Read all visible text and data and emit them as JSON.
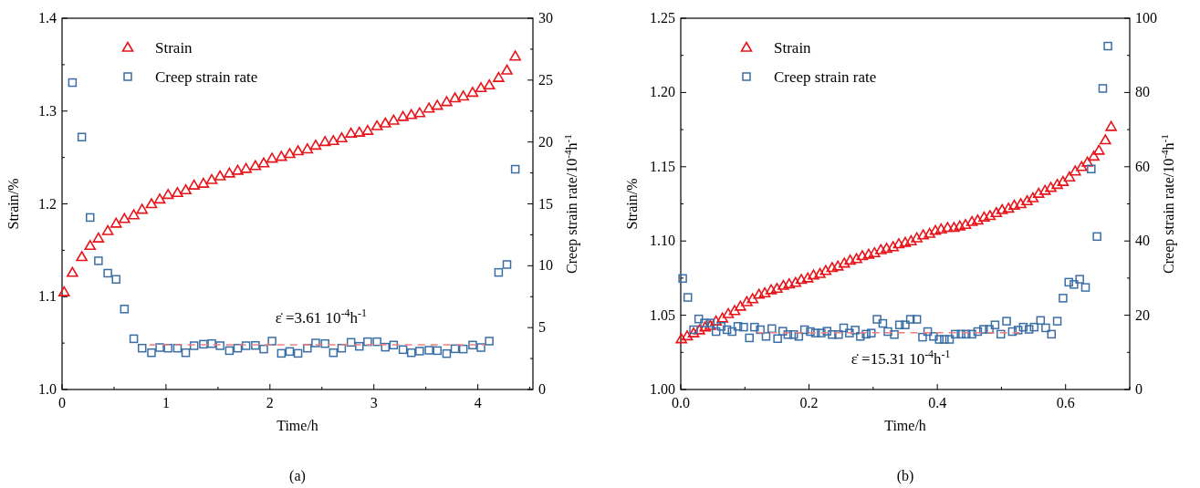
{
  "chart_data": [
    {
      "type": "scatter",
      "title": "(a)",
      "xlabel": "Time/h",
      "ylabel": "Strain/%",
      "y2label": "Creep strain rate/10$^{-4}$h$^{-1}$",
      "legend": "top left",
      "xlim": [
        0,
        4.53
      ],
      "xticks": [
        0,
        {
          "value": 0.5,
          "label": null
        },
        1,
        {
          "value": 1.5,
          "label": null
        },
        2,
        {
          "value": 2.5,
          "label": null
        },
        3,
        {
          "value": 3.5,
          "label": null
        },
        4,
        {
          "value": 4.5,
          "label": null
        }
      ],
      "ylim": [
        1.0,
        1.4
      ],
      "yticks": [
        {
          "value": 1.0,
          "label": "1.0"
        },
        {
          "value": 1.05,
          "label": null
        },
        1.1,
        {
          "value": 1.15,
          "label": null
        },
        1.2,
        {
          "value": 1.25,
          "label": null
        },
        1.3,
        {
          "value": 1.35,
          "label": null
        },
        1.4
      ],
      "y2lim": [
        0,
        30
      ],
      "y2ticks": [
        0,
        {
          "value": 2.5,
          "label": null
        },
        5,
        {
          "value": 7.5,
          "label": null
        },
        10,
        {
          "value": 12.5,
          "label": null
        },
        15,
        {
          "value": 17.5,
          "label": null
        },
        20,
        {
          "value": 22.5,
          "label": null
        },
        25,
        {
          "value": 27.5,
          "label": null
        },
        30
      ],
      "annotations": [
        "ε̇ =3.61 10$^{-4}$h$^{-1}$"
      ],
      "series": [
        {
          "name": "Strain",
          "color": "#e8141a",
          "marker": "triangle",
          "x": [
            0.02,
            0.1,
            0.19,
            0.27,
            0.35,
            0.44,
            0.52,
            0.6,
            0.69,
            0.77,
            0.86,
            0.94,
            1.02,
            1.11,
            1.19,
            1.27,
            1.36,
            1.44,
            1.52,
            1.61,
            1.69,
            1.77,
            1.86,
            1.94,
            2.02,
            2.11,
            2.19,
            2.27,
            2.36,
            2.44,
            2.53,
            2.61,
            2.69,
            2.78,
            2.86,
            2.94,
            3.03,
            3.11,
            3.19,
            3.28,
            3.36,
            3.44,
            3.53,
            3.61,
            3.7,
            3.78,
            3.86,
            3.95,
            4.03,
            4.11,
            4.2,
            4.28,
            4.36
          ],
          "values": [
            1.105,
            1.126,
            1.143,
            1.155,
            1.163,
            1.171,
            1.179,
            1.184,
            1.188,
            1.194,
            1.2,
            1.205,
            1.21,
            1.212,
            1.215,
            1.22,
            1.222,
            1.226,
            1.23,
            1.233,
            1.236,
            1.238,
            1.241,
            1.244,
            1.249,
            1.251,
            1.254,
            1.257,
            1.259,
            1.263,
            1.267,
            1.268,
            1.271,
            1.276,
            1.277,
            1.279,
            1.284,
            1.287,
            1.29,
            1.294,
            1.296,
            1.298,
            1.303,
            1.306,
            1.31,
            1.314,
            1.316,
            1.32,
            1.325,
            1.328,
            1.336,
            1.344,
            1.359
          ]
        },
        {
          "name": "Creep strain rate",
          "color": "#3a6ea5",
          "marker": "square",
          "axis": "y2",
          "x": [
            0.1,
            0.19,
            0.27,
            0.35,
            0.44,
            0.52,
            0.6,
            0.69,
            0.77,
            0.86,
            0.94,
            1.02,
            1.11,
            1.19,
            1.27,
            1.36,
            1.44,
            1.52,
            1.61,
            1.69,
            1.77,
            1.86,
            1.94,
            2.02,
            2.11,
            2.19,
            2.27,
            2.36,
            2.44,
            2.53,
            2.61,
            2.69,
            2.78,
            2.86,
            2.94,
            3.03,
            3.11,
            3.19,
            3.28,
            3.36,
            3.44,
            3.53,
            3.61,
            3.7,
            3.78,
            3.86,
            3.95,
            4.03,
            4.11,
            4.2,
            4.28,
            4.36
          ],
          "values": [
            24.8,
            20.4,
            13.9,
            10.4,
            9.4,
            8.9,
            6.5,
            4.1,
            3.34,
            2.97,
            3.39,
            3.34,
            3.34,
            2.97,
            3.54,
            3.66,
            3.71,
            3.54,
            3.14,
            3.34,
            3.54,
            3.56,
            3.27,
            3.91,
            2.92,
            3.07,
            2.92,
            3.34,
            3.76,
            3.71,
            2.97,
            3.34,
            3.81,
            3.49,
            3.86,
            3.86,
            3.42,
            3.59,
            3.22,
            2.97,
            3.1,
            3.17,
            3.14,
            2.9,
            3.29,
            3.27,
            3.59,
            3.39,
            3.91,
            9.46,
            10.1,
            17.8
          ]
        },
        {
          "type": "line",
          "color": "#f08080",
          "line_style": "dashed",
          "axis": "y2",
          "x": [
            0.84,
            4.07
          ],
          "values": [
            3.61,
            3.61
          ]
        }
      ]
    },
    {
      "type": "scatter",
      "title": "(b)",
      "xlabel": "Time/h",
      "ylabel": "Strain/%",
      "y2label": "Creep strain rate/10$^{-4}$h$^{-1}$",
      "legend": "top left",
      "xlim": [
        0,
        0.7
      ],
      "xticks": [
        {
          "value": 0,
          "label": "0.0"
        },
        {
          "value": 0.1,
          "label": null
        },
        0.2,
        {
          "value": 0.3,
          "label": null
        },
        0.4,
        {
          "value": 0.5,
          "label": null
        },
        0.6,
        {
          "value": 0.7,
          "label": null
        }
      ],
      "ylim": [
        1.0,
        1.25
      ],
      "yticks": [
        {
          "value": 1.0,
          "label": "1.00"
        },
        {
          "value": 1.025,
          "label": null
        },
        {
          "value": 1.05,
          "label": "1.05"
        },
        {
          "value": 1.075,
          "label": null
        },
        {
          "value": 1.1,
          "label": "1.10"
        },
        {
          "value": 1.125,
          "label": null
        },
        {
          "value": 1.15,
          "label": "1.15"
        },
        {
          "value": 1.175,
          "label": null
        },
        {
          "value": 1.2,
          "label": "1.20"
        },
        {
          "value": 1.225,
          "label": null
        },
        {
          "value": 1.25,
          "label": "1.25"
        }
      ],
      "y2lim": [
        0,
        100
      ],
      "y2ticks": [
        0,
        {
          "value": 10,
          "label": null
        },
        20,
        {
          "value": 30,
          "label": null
        },
        40,
        {
          "value": 50,
          "label": null
        },
        60,
        {
          "value": 70,
          "label": null
        },
        80,
        {
          "value": 90,
          "label": null
        },
        100
      ],
      "annotations": [
        "ε̇ =15.31 10$^{-4}$h$^{-1}$"
      ],
      "series": [
        {
          "name": "Strain",
          "color": "#e8141a",
          "marker": "triangle",
          "x": [
            0.001,
            0.01,
            0.02,
            0.029,
            0.038,
            0.046,
            0.055,
            0.065,
            0.074,
            0.084,
            0.093,
            0.103,
            0.112,
            0.122,
            0.131,
            0.141,
            0.15,
            0.16,
            0.169,
            0.179,
            0.188,
            0.198,
            0.207,
            0.217,
            0.226,
            0.236,
            0.245,
            0.255,
            0.264,
            0.274,
            0.283,
            0.293,
            0.302,
            0.312,
            0.321,
            0.331,
            0.34,
            0.35,
            0.359,
            0.368,
            0.378,
            0.388,
            0.397,
            0.406,
            0.416,
            0.426,
            0.435,
            0.444,
            0.454,
            0.463,
            0.473,
            0.482,
            0.492,
            0.501,
            0.511,
            0.52,
            0.53,
            0.54,
            0.549,
            0.558,
            0.568,
            0.577,
            0.587,
            0.596,
            0.606,
            0.615,
            0.625,
            0.634,
            0.644,
            0.652,
            0.662,
            0.671
          ],
          "values": [
            1.034,
            1.036,
            1.038,
            1.04,
            1.042,
            1.043,
            1.046,
            1.048,
            1.051,
            1.053,
            1.056,
            1.059,
            1.061,
            1.064,
            1.065,
            1.067,
            1.068,
            1.07,
            1.071,
            1.072,
            1.074,
            1.075,
            1.077,
            1.078,
            1.08,
            1.082,
            1.083,
            1.085,
            1.087,
            1.088,
            1.09,
            1.091,
            1.092,
            1.094,
            1.095,
            1.096,
            1.098,
            1.099,
            1.1,
            1.102,
            1.104,
            1.105,
            1.107,
            1.108,
            1.109,
            1.109,
            1.11,
            1.111,
            1.113,
            1.114,
            1.116,
            1.117,
            1.119,
            1.121,
            1.122,
            1.124,
            1.125,
            1.127,
            1.129,
            1.132,
            1.134,
            1.136,
            1.138,
            1.14,
            1.143,
            1.147,
            1.15,
            1.153,
            1.157,
            1.161,
            1.168,
            1.177
          ]
        },
        {
          "name": "Creep strain rate",
          "color": "#3a6ea5",
          "marker": "square",
          "axis": "y2",
          "x": [
            0.003,
            0.011,
            0.02,
            0.028,
            0.037,
            0.046,
            0.055,
            0.063,
            0.072,
            0.08,
            0.089,
            0.098,
            0.107,
            0.115,
            0.124,
            0.133,
            0.142,
            0.151,
            0.159,
            0.167,
            0.176,
            0.184,
            0.193,
            0.202,
            0.21,
            0.219,
            0.228,
            0.236,
            0.246,
            0.254,
            0.263,
            0.272,
            0.28,
            0.289,
            0.297,
            0.306,
            0.315,
            0.323,
            0.333,
            0.341,
            0.35,
            0.358,
            0.368,
            0.377,
            0.385,
            0.394,
            0.403,
            0.411,
            0.419,
            0.428,
            0.437,
            0.445,
            0.454,
            0.463,
            0.472,
            0.481,
            0.49,
            0.499,
            0.508,
            0.517,
            0.526,
            0.534,
            0.543,
            0.551,
            0.561,
            0.569,
            0.578,
            0.587,
            0.596,
            0.605,
            0.613,
            0.622,
            0.631,
            0.64,
            0.649,
            0.658,
            0.666
          ],
          "values": [
            29.9,
            24.8,
            16.1,
            19.0,
            17.9,
            17.9,
            15.6,
            17.0,
            16.1,
            15.6,
            17.0,
            16.8,
            13.9,
            16.8,
            16.1,
            14.3,
            16.4,
            13.7,
            15.7,
            14.8,
            14.8,
            14.3,
            16.1,
            15.6,
            15.2,
            15.2,
            15.7,
            14.8,
            14.8,
            16.6,
            15.2,
            16.0,
            14.3,
            14.9,
            15.2,
            18.9,
            17.8,
            15.6,
            14.8,
            17.4,
            17.4,
            18.9,
            18.9,
            14.1,
            15.6,
            14.3,
            13.5,
            13.5,
            13.5,
            14.9,
            14.9,
            14.9,
            14.9,
            15.6,
            16.2,
            16.2,
            17.4,
            14.9,
            18.4,
            15.6,
            16.0,
            16.8,
            16.2,
            16.8,
            18.6,
            16.6,
            14.9,
            18.4,
            24.6,
            28.9,
            28.3,
            29.7,
            27.5,
            59.4,
            41.2,
            81.1,
            92.5
          ]
        },
        {
          "type": "line",
          "color": "#f08080",
          "line_style": "dashed",
          "axis": "y2",
          "x": [
            0.119,
            0.532
          ],
          "values": [
            15.31,
            15.31
          ]
        }
      ]
    }
  ]
}
